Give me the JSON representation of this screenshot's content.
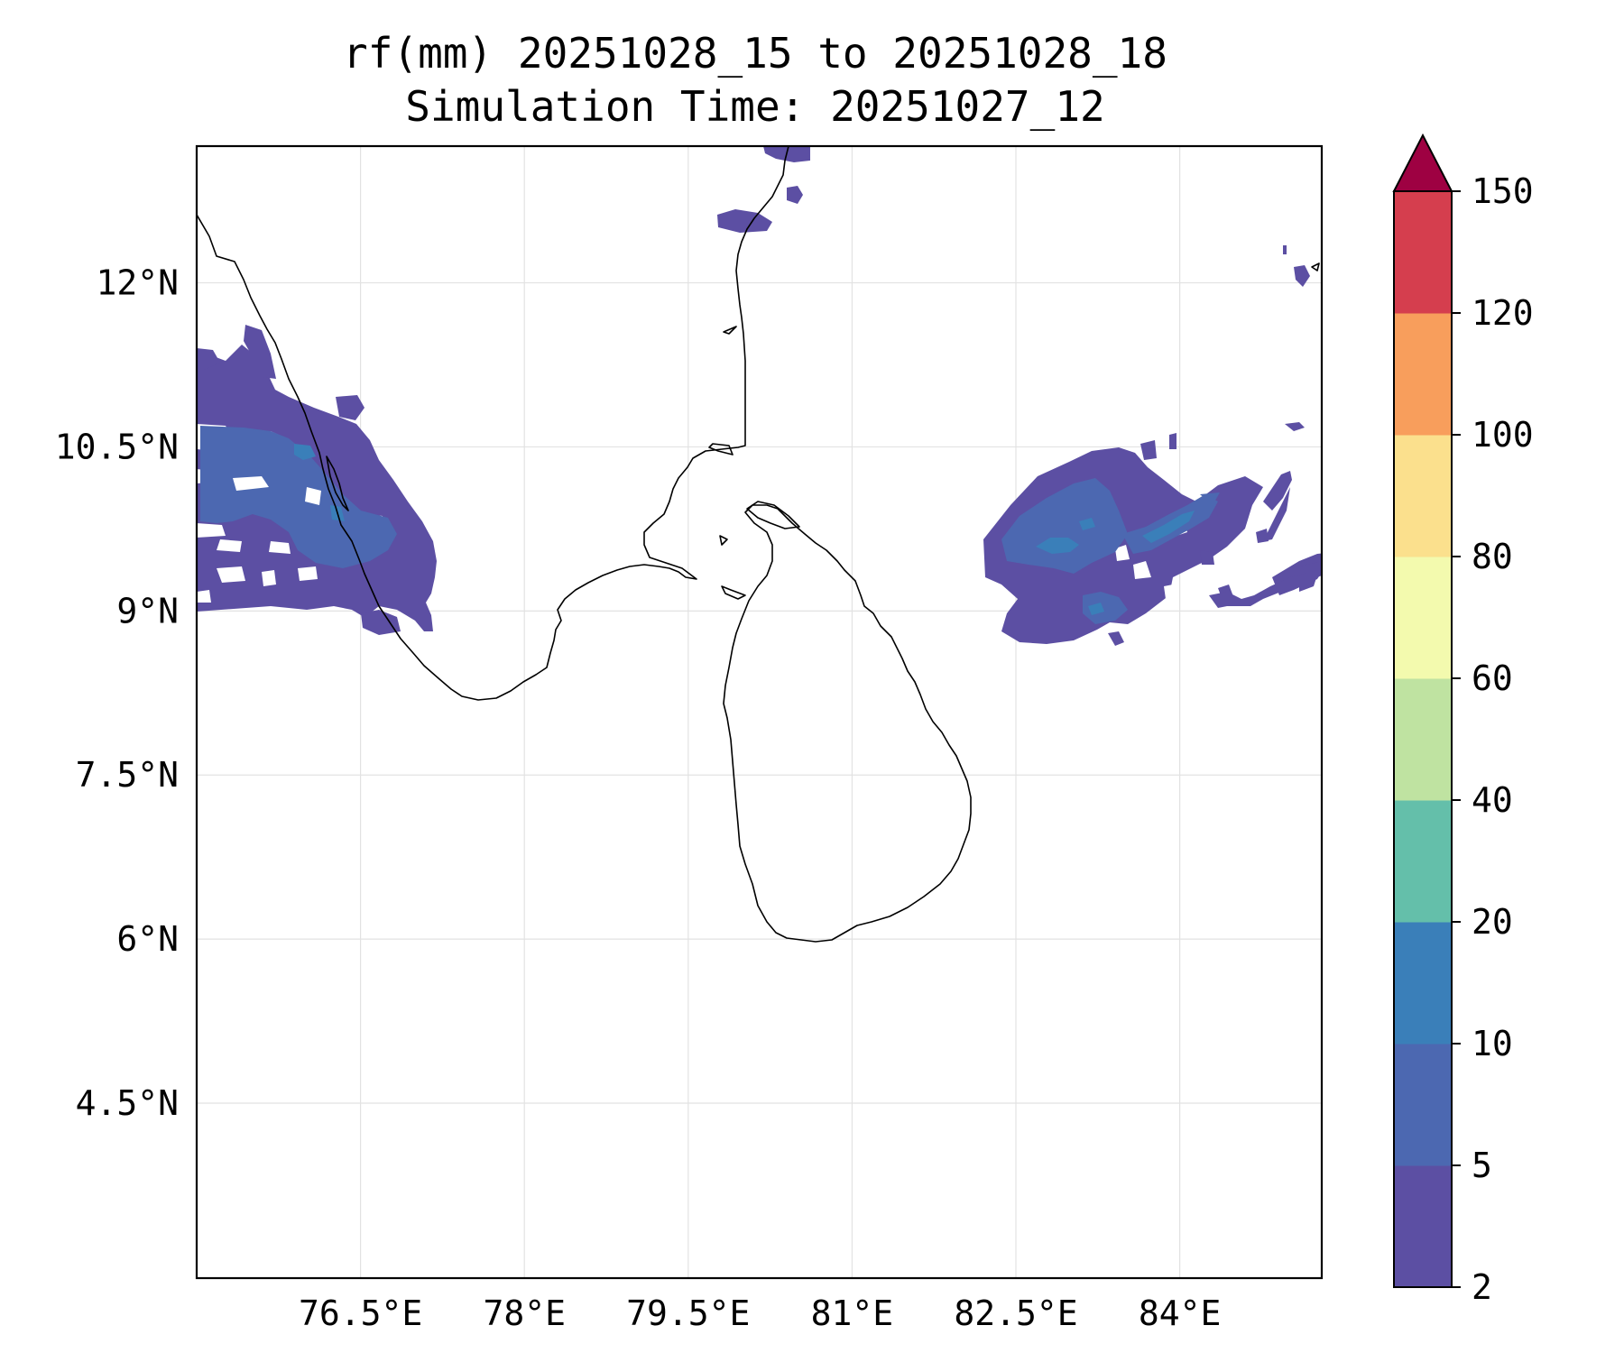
{
  "title": {
    "line1": "rf(mm) 20251028_15 to 20251028_18",
    "line2": "Simulation Time: 20251027_12"
  },
  "map": {
    "lon_range": [
      75.0,
      85.3
    ],
    "lat_range": [
      2.9,
      13.25
    ],
    "grid": true,
    "lon_ticks": [
      {
        "value": 76.5,
        "label": "76.5°E"
      },
      {
        "value": 78.0,
        "label": "78°E"
      },
      {
        "value": 79.5,
        "label": "79.5°E"
      },
      {
        "value": 81.0,
        "label": "81°E"
      },
      {
        "value": 82.5,
        "label": "82.5°E"
      },
      {
        "value": 84.0,
        "label": "84°E"
      }
    ],
    "lat_ticks": [
      {
        "value": 12.0,
        "label": "12°N"
      },
      {
        "value": 10.5,
        "label": "10.5°N"
      },
      {
        "value": 9.0,
        "label": "9°N"
      },
      {
        "value": 7.5,
        "label": "7.5°N"
      },
      {
        "value": 6.0,
        "label": "6°N"
      },
      {
        "value": 4.5,
        "label": "4.5°N"
      }
    ]
  },
  "colorbar": {
    "levels": [
      "2",
      "5",
      "10",
      "20",
      "40",
      "60",
      "80",
      "100",
      "120",
      "150"
    ],
    "colors": [
      "#5c4fa3",
      "#4c68b1",
      "#3a7fb9",
      "#64bfaa",
      "#bfe3a1",
      "#f3faae",
      "#fbe08d",
      "#f89e5c",
      "#d53e4e"
    ],
    "extend_color": "#9e0142",
    "extend": "max"
  },
  "colors": {
    "rain_2_5": "#5c4fa3",
    "rain_5_10": "#4c68b1",
    "rain_10_20": "#3a7fb9",
    "coastline": "#000000",
    "gridline": "#e2e2e2"
  }
}
